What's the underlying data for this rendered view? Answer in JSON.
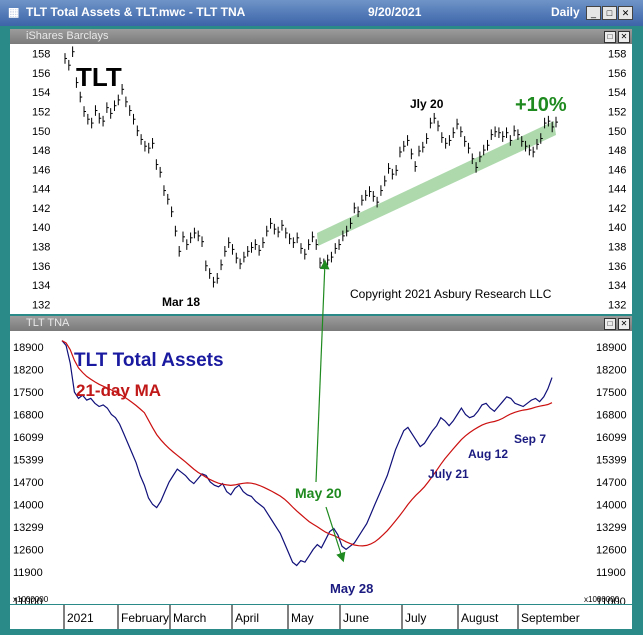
{
  "window": {
    "title": "TLT Total Assets & TLT.mwc - TLT TNA",
    "date": "9/20/2021",
    "interval": "Daily"
  },
  "top_panel": {
    "header": "iShares Barclays"
  },
  "bottom_panel": {
    "header": "TLT TNA"
  },
  "x_axis": {
    "labels": [
      "2021",
      "February",
      "March",
      "April",
      "May",
      "June",
      "July",
      "August",
      "September"
    ]
  },
  "chart_data": [
    {
      "type": "ohlc",
      "title": "TLT",
      "ylim": [
        131,
        159
      ],
      "yticks": [
        132,
        134,
        136,
        138,
        140,
        142,
        144,
        146,
        148,
        150,
        152,
        154,
        156,
        158
      ],
      "annotations": {
        "gain": "+10%",
        "high_label": "Jly 20",
        "low_label": "Mar 18",
        "copyright": "Copyright 2021 Asbury Research LLC"
      },
      "series": [
        {
          "values": [
            157.5,
            156.8,
            158.2,
            155.0,
            153.5,
            152.0,
            151.2,
            150.8,
            152.1,
            151.3,
            151.0,
            152.4,
            151.8,
            152.6,
            153.2,
            154.3,
            153.0,
            152.1,
            151.2,
            150.0,
            149.1,
            148.4,
            148.2,
            148.7,
            146.5,
            145.7,
            143.8,
            142.9,
            141.6,
            139.6,
            137.5,
            139.0,
            138.2,
            138.9,
            139.4,
            139.1,
            138.5,
            136.0,
            135.2,
            134.3,
            134.7,
            136.1,
            137.5,
            138.4,
            137.7,
            136.8,
            136.2,
            136.9,
            137.5,
            137.9,
            138.2,
            137.6,
            138.4,
            139.6,
            140.4,
            139.8,
            139.5,
            140.2,
            139.4,
            138.8,
            138.4,
            138.9,
            137.8,
            137.2,
            138.2,
            139.0,
            138.2,
            136.3,
            136.2,
            136.6,
            136.9,
            137.8,
            138.2,
            139.1,
            139.6,
            140.4,
            142.0,
            141.6,
            142.8,
            143.3,
            143.7,
            143.2,
            142.6,
            143.8,
            144.8,
            146.1,
            145.5,
            145.9,
            147.8,
            148.4,
            149.0,
            147.6,
            146.3,
            147.9,
            148.3,
            149.2,
            150.8,
            151.3,
            150.5,
            149.3,
            148.7,
            149.0,
            149.8,
            150.7,
            149.9,
            148.9,
            148.2,
            147.1,
            146.2,
            147.3,
            148.0,
            148.5,
            149.6,
            149.9,
            149.8,
            149.4,
            149.8,
            149.0,
            150.0,
            149.6,
            148.9,
            148.4,
            148.0,
            147.8,
            148.6,
            149.2,
            150.8,
            151.0,
            150.4,
            150.9
          ]
        }
      ]
    },
    {
      "type": "line",
      "title": "TLT Total Assets",
      "subtitle": "21-day MA",
      "ylim": [
        10900,
        19400
      ],
      "yticks": [
        11000,
        11900,
        12600,
        13299,
        14000,
        14700,
        15399,
        16099,
        16800,
        17500,
        18200,
        18900
      ],
      "unit_label": "x1000000",
      "annotations": {
        "low_labels": [
          "May 20",
          "May 28"
        ],
        "series_labels": [
          "July 21",
          "Aug 12",
          "Sep 7"
        ]
      },
      "series": [
        {
          "values": [
            19100,
            18950,
            18400,
            17500,
            17300,
            17400,
            17250,
            17300,
            17150,
            17050,
            17100,
            17000,
            16800,
            16700,
            16500,
            16200,
            15900,
            15600,
            15300,
            14900,
            14600,
            14200,
            14000,
            13900,
            14100,
            14400,
            14700,
            14900,
            15100,
            15000,
            14900,
            14750,
            14650,
            14800,
            14950,
            14900,
            14700,
            14600,
            14550,
            14650,
            14400,
            14300,
            14500,
            14600,
            14400,
            14300,
            14250,
            14100,
            14000,
            13900,
            13700,
            13500,
            13300,
            13100,
            12800,
            12500,
            12200,
            12100,
            12250,
            12200,
            12400,
            12600,
            12750,
            12650,
            12900,
            13150,
            13250,
            13050,
            12700,
            12600,
            12700,
            12800,
            13000,
            13200,
            13400,
            13700,
            14000,
            14300,
            14600,
            14900,
            15300,
            15700,
            16000,
            16300,
            16400,
            16200,
            16000,
            15800,
            15900,
            16100,
            16300,
            16450,
            16700,
            16600,
            16450,
            16600,
            16800,
            17000,
            16800,
            16700,
            16750,
            16900,
            17100,
            17150,
            17000,
            16900,
            17050,
            17200,
            17350,
            17300,
            17150,
            17100,
            17050,
            17150,
            17250,
            17300,
            17200,
            17350,
            17600,
            17950
          ]
        }
      ]
    }
  ]
}
